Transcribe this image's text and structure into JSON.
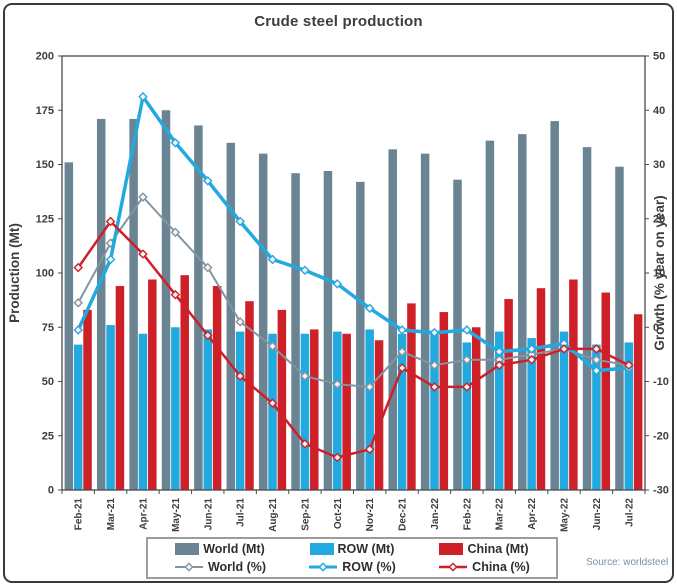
{
  "title": "Crude steel production",
  "source": "Source: worldsteel",
  "chart_data": {
    "type": "combo-bar-line",
    "title": "Crude steel production",
    "categories": [
      "Feb-21",
      "Mar-21",
      "Apr-21",
      "May-21",
      "Jun-21",
      "Jul-21",
      "Aug-21",
      "Sep-21",
      "Oct-21",
      "Nov-21",
      "Dec-21",
      "Jan-22",
      "Feb-22",
      "Mar-22",
      "Apr-22",
      "May-22",
      "Jun-22",
      "Jul-22"
    ],
    "left_axis": {
      "label": "Production (Mt)",
      "min": 0,
      "max": 200,
      "step": 25
    },
    "right_axis": {
      "label": "Growth (% year on year)",
      "min": -30,
      "max": 50,
      "step": 10
    },
    "grid": false,
    "legend_position": "bottom",
    "bar_series": [
      {
        "name": "World (Mt)",
        "color": "#6a8494",
        "values": [
          151,
          171,
          171,
          175,
          168,
          160,
          155,
          146,
          147,
          142,
          157,
          155,
          143,
          161,
          164,
          170,
          158,
          149
        ]
      },
      {
        "name": "ROW (Mt)",
        "color": "#22a9e0",
        "values": [
          67,
          76,
          72,
          75,
          74,
          73,
          72,
          72,
          73,
          74,
          72,
          73,
          68,
          73,
          70,
          73,
          67,
          68
        ]
      },
      {
        "name": "China (Mt)",
        "color": "#ce2029",
        "values": [
          83,
          94,
          97,
          99,
          94,
          87,
          83,
          74,
          72,
          69,
          86,
          82,
          75,
          88,
          93,
          97,
          91,
          81
        ]
      }
    ],
    "line_series": [
      {
        "name": "World (%)",
        "color": "#8195a3",
        "width": 2,
        "values": [
          4.5,
          15.5,
          24,
          17.5,
          11,
          1,
          -3.5,
          -9,
          -10.5,
          -11,
          -4.5,
          -7,
          -6,
          -6,
          -5,
          -4,
          -6,
          -7
        ]
      },
      {
        "name": "ROW (%)",
        "color": "#22a9e0",
        "width": 3.5,
        "values": [
          -0.5,
          12.5,
          42.5,
          34,
          27,
          19.5,
          12.5,
          10.5,
          8,
          3.5,
          -0.5,
          -1,
          -0.5,
          -4.5,
          -4,
          -3,
          -8,
          -7.5
        ]
      },
      {
        "name": "China (%)",
        "color": "#ce2029",
        "width": 2.5,
        "values": [
          11,
          19.5,
          13.5,
          6,
          -1.5,
          -9,
          -14,
          -21.5,
          -24,
          -22.5,
          -7.5,
          -11,
          -11,
          -7,
          -6,
          -4,
          -4,
          -7
        ]
      }
    ]
  }
}
